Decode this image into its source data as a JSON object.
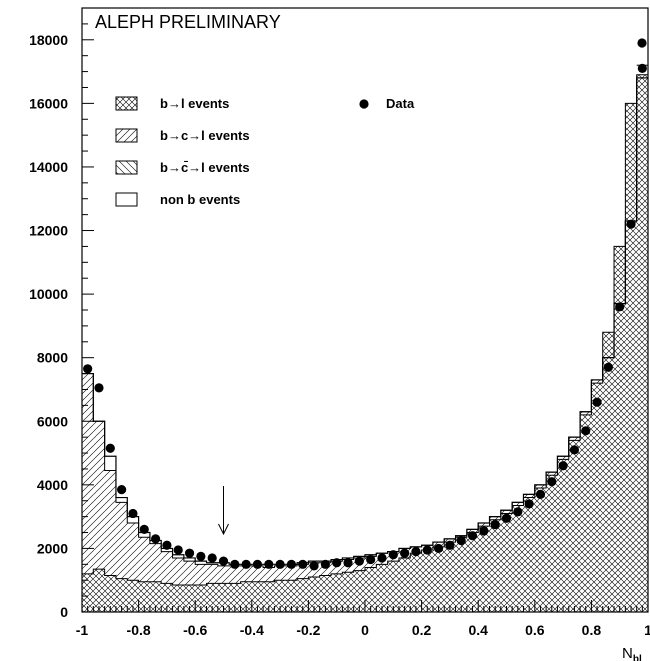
{
  "chart_data": {
    "type": "histogram",
    "title": "ALEPH PRELIMINARY",
    "xlabel": "N",
    "xlabel_subscript": "bl",
    "xlim": [
      -1,
      1
    ],
    "ylim": [
      0,
      19000
    ],
    "x_tick_labels": [
      "-1",
      "-0.8",
      "-0.6",
      "-0.4",
      "-0.2",
      "0",
      "0.2",
      "0.4",
      "0.6",
      "0.8",
      "1"
    ],
    "y_tick_labels": [
      "0",
      "2000",
      "4000",
      "6000",
      "8000",
      "10000",
      "12000",
      "14000",
      "16000",
      "18000"
    ],
    "bins": 50,
    "bin_edges_range": [
      -1,
      1
    ],
    "arrow_x": -0.5,
    "series": [
      {
        "name": "b→l events",
        "pattern": "crosshatch",
        "values": [
          1200,
          1350,
          1150,
          1050,
          1000,
          950,
          950,
          900,
          850,
          850,
          850,
          900,
          900,
          900,
          950,
          950,
          950,
          1000,
          1000,
          1050,
          1100,
          1150,
          1200,
          1250,
          1300,
          1400,
          1500,
          1600,
          1700,
          1850,
          1950,
          2050,
          2200,
          2350,
          2500,
          2700,
          2900,
          3100,
          3350,
          3600,
          3900,
          4300,
          4800,
          5400,
          6200,
          7200,
          8800,
          11500,
          16000,
          16900
        ]
      },
      {
        "name": "b→c→l events",
        "pattern": "diagonal-right",
        "values": [
          6300,
          5200,
          3300,
          2400,
          1800,
          1400,
          1200,
          1000,
          850,
          750,
          650,
          600,
          550,
          550,
          500,
          500,
          450,
          450,
          450,
          450,
          450,
          400,
          400,
          400,
          400,
          350,
          350,
          300,
          300,
          300,
          250,
          250,
          250,
          250,
          250,
          200,
          200,
          200,
          200,
          200,
          150,
          150,
          150,
          150,
          150,
          150,
          150,
          150,
          150,
          150
        ]
      },
      {
        "name": "b→c̄→l events",
        "pattern": "diagonal-left",
        "values": [
          0,
          0,
          0,
          0,
          0,
          0,
          0,
          0,
          0,
          0,
          0,
          0,
          0,
          0,
          0,
          0,
          0,
          0,
          0,
          0,
          0,
          0,
          0,
          0,
          0,
          0,
          0,
          0,
          0,
          0,
          0,
          0,
          0,
          0,
          0,
          0,
          0,
          0,
          0,
          0,
          0,
          0,
          0,
          0,
          0,
          0,
          0,
          0,
          0,
          0
        ]
      },
      {
        "name": "non b events",
        "pattern": "empty",
        "values": [
          0,
          0,
          0,
          0,
          0,
          0,
          0,
          0,
          0,
          0,
          0,
          0,
          0,
          0,
          0,
          0,
          0,
          0,
          0,
          0,
          0,
          0,
          0,
          0,
          0,
          0,
          0,
          0,
          0,
          0,
          0,
          0,
          0,
          0,
          0,
          0,
          0,
          0,
          0,
          0,
          0,
          0,
          0,
          0,
          0,
          0,
          0,
          0,
          0,
          0
        ]
      },
      {
        "name": "Data",
        "marker": "dot",
        "values": [
          7650,
          7050,
          5150,
          3850,
          3100,
          2600,
          2300,
          2100,
          1950,
          1850,
          1750,
          1700,
          1600,
          1500,
          1500,
          1500,
          1500,
          1500,
          1500,
          1500,
          1450,
          1500,
          1550,
          1550,
          1600,
          1650,
          1700,
          1800,
          1850,
          1900,
          1950,
          2000,
          2100,
          2250,
          2400,
          2550,
          2750,
          2950,
          3150,
          3400,
          3700,
          4100,
          4600,
          5100,
          5700,
          6600,
          7700,
          9600,
          12200,
          17100
        ]
      }
    ],
    "totals": [
      7500,
      6000,
      4900,
      3600,
      3000,
      2500,
      2250,
      2000,
      1800,
      1700,
      1600,
      1550,
      1550,
      1500,
      1500,
      1500,
      1500,
      1500,
      1500,
      1550,
      1600,
      1600,
      1650,
      1700,
      1750,
      1800,
      1850,
      1900,
      2000,
      2050,
      2100,
      2200,
      2300,
      2400,
      2600,
      2800,
      3000,
      3200,
      3450,
      3700,
      4000,
      4400,
      4900,
      5500,
      6300,
      7300,
      8000,
      9700,
      12300,
      16800
    ],
    "extra_last_bin_total": 17200,
    "data_last_point": 17900
  }
}
